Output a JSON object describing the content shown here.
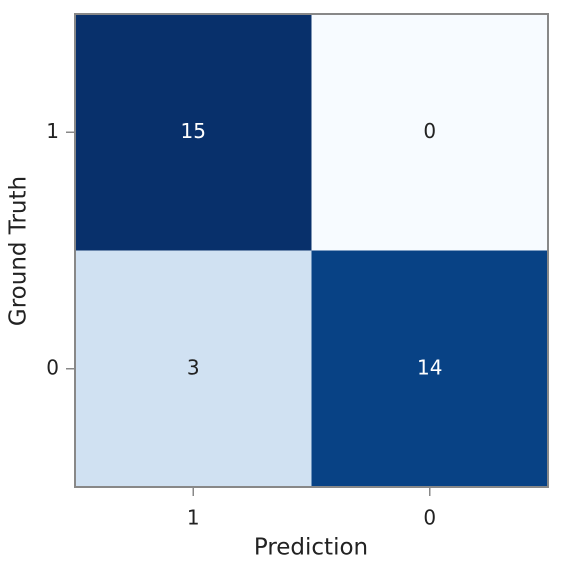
{
  "chart_data": {
    "type": "heatmap",
    "x_label": "Prediction",
    "y_label": "Ground Truth",
    "x_categories": [
      "1",
      "0"
    ],
    "y_categories": [
      "1",
      "0"
    ],
    "values": [
      [
        15,
        0
      ],
      [
        3,
        14
      ]
    ],
    "clim": [
      0,
      15
    ],
    "colormap": [
      "#f7fbff",
      "#deebf7",
      "#c6dbef",
      "#9ecae1",
      "#6baed6",
      "#4292c6",
      "#2171b5",
      "#08519c",
      "#08306b"
    ],
    "annotations": true
  }
}
